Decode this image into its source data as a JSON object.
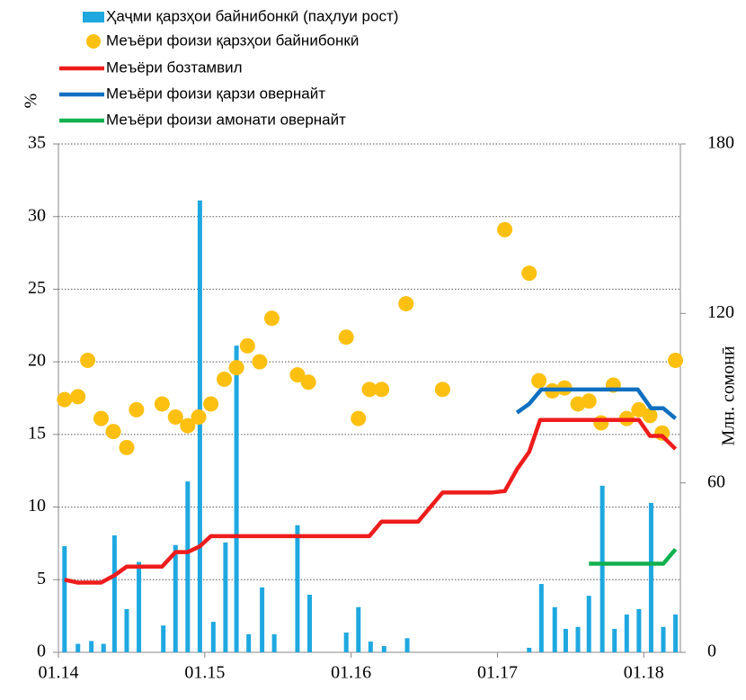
{
  "chart_data": {
    "type": "combo",
    "y_label": "%",
    "y2_label": "Млн. сомонӣ",
    "xlim": [
      0,
      51
    ],
    "ylim": [
      0,
      35
    ],
    "y2lim": [
      0,
      180
    ],
    "xticks": [
      {
        "value": 0,
        "label": "01.14"
      },
      {
        "value": 12,
        "label": "01.15"
      },
      {
        "value": 24,
        "label": "01.16"
      },
      {
        "value": 36,
        "label": "01.17"
      },
      {
        "value": 48,
        "label": "01.18"
      }
    ],
    "yticks": [
      0,
      5,
      10,
      15,
      20,
      25,
      30,
      35
    ],
    "y2ticks": [
      0,
      60,
      120,
      180
    ],
    "grid": true,
    "series": [
      {
        "name": "Ҳаҷми қарзҳои байнибонкӣ (паҳлуи рост)",
        "type": "bar",
        "axis": "y2",
        "color": "#1fa8e0",
        "x": [
          0.5,
          1.6,
          2.7,
          3.7,
          4.6,
          5.6,
          6.6,
          8.6,
          9.6,
          10.6,
          11.6,
          12.7,
          13.7,
          14.6,
          15.6,
          16.7,
          17.7,
          19.6,
          20.6,
          23.6,
          24.6,
          25.6,
          26.7,
          28.6,
          38.6,
          39.6,
          40.7,
          41.6,
          42.6,
          43.5,
          44.6,
          45.6,
          46.6,
          47.6,
          48.6,
          49.6,
          50.6
        ],
        "values": [
          37.6,
          3,
          4,
          3,
          41.4,
          15.3,
          32,
          9.5,
          38,
          60.5,
          160,
          10.8,
          38.9,
          108.6,
          6.4,
          23,
          6.4,
          45,
          20.4,
          7,
          16,
          3.8,
          2.2,
          5,
          1.6,
          24.2,
          16,
          8.3,
          9,
          20,
          59,
          8.3,
          13.4,
          15.3,
          52.9,
          9,
          13.4
        ]
      },
      {
        "name": "Меъёри фоизи  қарзҳои байнибонкӣ",
        "type": "scatter",
        "color": "#fdc010",
        "x": [
          0.5,
          1.6,
          2.4,
          3.5,
          4.5,
          5.6,
          6.4,
          8.5,
          9.6,
          10.6,
          11.5,
          12.5,
          13.6,
          14.6,
          15.5,
          16.5,
          17.5,
          19.6,
          20.5,
          23.6,
          24.6,
          25.5,
          26.5,
          28.5,
          31.5,
          36.6,
          38.6,
          39.4,
          40.5,
          41.5,
          42.6,
          43.5,
          44.5,
          45.5,
          46.6,
          47.6,
          48.5,
          49.5,
          50.6
        ],
        "values": [
          17.4,
          17.6,
          20.1,
          16.1,
          15.2,
          14.1,
          16.7,
          17.1,
          16.2,
          15.6,
          16.2,
          17.1,
          18.8,
          19.6,
          21.1,
          20,
          23,
          19.1,
          18.6,
          21.7,
          16.1,
          18.1,
          18.1,
          24,
          18.1,
          29.1,
          26.1,
          18.7,
          18,
          18.2,
          17.1,
          17.3,
          15.8,
          18.4,
          16.1,
          16.7,
          16.3,
          15.1,
          20.1
        ]
      },
      {
        "name": "Меъёри бозтамвил",
        "type": "line",
        "color": "#ee1c1c",
        "x": [
          0.5,
          1.6,
          3.5,
          4.6,
          5.6,
          8.5,
          9.6,
          10.6,
          11.6,
          12.5,
          25.5,
          26.5,
          29.5,
          30.5,
          31.5,
          35.5,
          36.6,
          37.6,
          38.6,
          39.5,
          47.6,
          48.5,
          49.5,
          50.6
        ],
        "values": [
          5,
          4.8,
          4.8,
          5.3,
          5.9,
          5.9,
          6.9,
          6.9,
          7.3,
          8,
          8,
          9,
          9,
          10,
          11,
          11,
          11.1,
          12.6,
          13.8,
          16,
          16,
          14.9,
          14.9,
          14
        ]
      },
      {
        "name": "Меъёри фоизи қарзи овернайт",
        "type": "line",
        "color": "#0f6fc0",
        "x": [
          37.6,
          38.6,
          39.6,
          47.5,
          48.6,
          49.6,
          50.6
        ],
        "values": [
          16.5,
          17.1,
          18.1,
          18.1,
          16.8,
          16.8,
          16.1
        ]
      },
      {
        "name": "Меъёри фоизи амонати овернайт",
        "type": "line",
        "color": "#11b04f",
        "x": [
          43.5,
          49.6,
          50.6
        ],
        "values": [
          6.1,
          6.1,
          7.1
        ]
      }
    ]
  }
}
